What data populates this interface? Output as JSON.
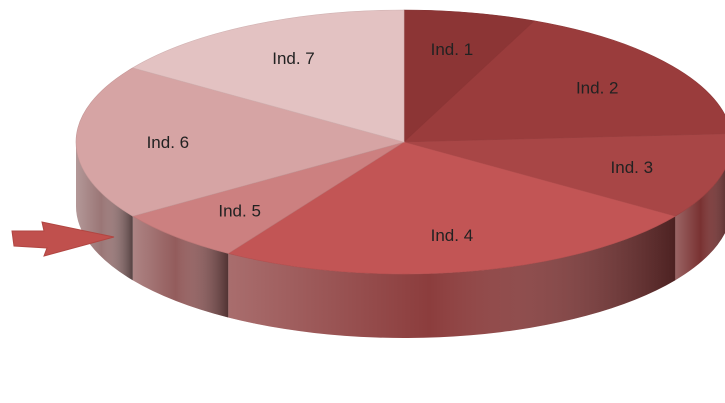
{
  "chart_data": {
    "type": "pie",
    "style": "3d",
    "legend": "none",
    "labels_on_slices": true,
    "slices": [
      {
        "label": "Ind. 1",
        "value": 6.5,
        "color": "#8c3535"
      },
      {
        "label": "Ind. 2",
        "value": 17.5,
        "color": "#9a3c3c"
      },
      {
        "label": "Ind. 3",
        "value": 10.5,
        "color": "#a84646"
      },
      {
        "label": "Ind. 4",
        "value": 24.5,
        "color": "#c25555"
      },
      {
        "label": "Ind. 5",
        "value": 6.5,
        "color": "#cc8080"
      },
      {
        "label": "Ind. 6",
        "value": 19.0,
        "color": "#d6a4a4"
      },
      {
        "label": "Ind. 7",
        "value": 15.5,
        "color": "#e3c2c2"
      }
    ],
    "annotation": {
      "type": "arrow",
      "points_to": "Ind. 5",
      "color": "#c0504d"
    }
  }
}
